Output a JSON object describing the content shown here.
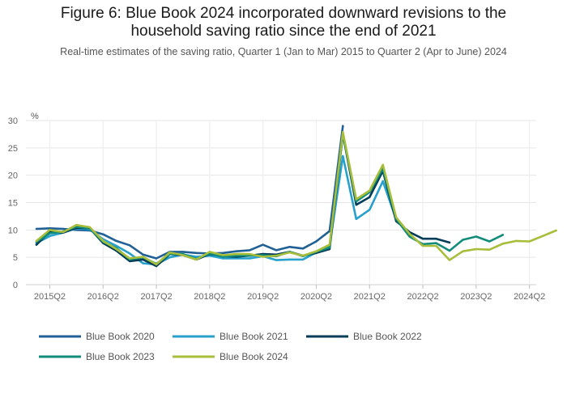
{
  "title_line1": "Figure 6: Blue Book 2024 incorporated downward revisions to the",
  "title_line2": "household saving ratio since the end of 2021",
  "subtitle": "Real-time estimates of the saving ratio, Quarter 1 (Jan to Mar) 2015 to Quarter 2 (Apr to June) 2024",
  "chart_data": {
    "type": "line",
    "title": "Figure 6: Blue Book 2024 incorporated downward revisions to the household saving ratio since the end of 2021",
    "subtitle": "Real-time estimates of the saving ratio, Quarter 1 (Jan to Mar) 2015 to Quarter 2 (Apr to June) 2024",
    "ylabel": "%",
    "xlabel": "",
    "ylim": [
      0,
      30
    ],
    "yticks": [
      "0",
      "5",
      "10",
      "15",
      "20",
      "25",
      "30"
    ],
    "x_tick_labels": [
      "2015Q2",
      "2016Q2",
      "2017Q2",
      "2018Q2",
      "2019Q2",
      "2020Q2",
      "2021Q2",
      "2022Q2",
      "2023Q2",
      "2024Q2"
    ],
    "x_start": "2015Q1",
    "x_tick_first_index": 1,
    "x_tick_step": 4,
    "grid": true,
    "legend_position": "bottom",
    "series": [
      {
        "name": "Blue Book 2020",
        "color": "#206095",
        "values": [
          10.2,
          10.3,
          10.2,
          10.0,
          9.9,
          9.2,
          8.0,
          7.2,
          5.5,
          4.8,
          6.0,
          6.0,
          5.8,
          5.7,
          5.8,
          6.1,
          6.3,
          7.3,
          6.3,
          6.9,
          6.6,
          7.9,
          9.8,
          29.0
        ]
      },
      {
        "name": "Blue Book 2021",
        "color": "#27A0CC",
        "values": [
          7.6,
          8.9,
          9.5,
          10.3,
          10.1,
          8.3,
          7.1,
          5.7,
          3.9,
          3.7,
          5.0,
          5.5,
          5.1,
          5.3,
          4.8,
          4.8,
          4.8,
          5.2,
          4.5,
          4.6,
          4.6,
          5.9,
          7.0,
          23.5,
          12.0,
          13.7,
          18.9,
          11.9,
          9.3
        ]
      },
      {
        "name": "Blue Book 2022",
        "color": "#003C57",
        "values": [
          7.3,
          9.7,
          9.5,
          10.4,
          10.3,
          7.6,
          6.2,
          4.3,
          4.6,
          3.4,
          5.6,
          5.4,
          4.6,
          5.6,
          5.2,
          5.1,
          5.3,
          5.6,
          5.5,
          6.0,
          5.3,
          5.8,
          6.5,
          27.5,
          14.6,
          16.0,
          20.8,
          11.6,
          9.6,
          8.4,
          8.4,
          7.7
        ]
      },
      {
        "name": "Blue Book 2023",
        "color": "#118C7B",
        "values": [
          7.8,
          9.4,
          9.7,
          10.6,
          10.3,
          7.8,
          6.7,
          4.6,
          5.0,
          3.8,
          5.6,
          5.6,
          4.7,
          5.7,
          5.1,
          5.3,
          5.3,
          5.4,
          5.2,
          6.0,
          5.2,
          6.0,
          6.8,
          27.6,
          15.2,
          16.9,
          21.2,
          12.0,
          8.8,
          7.4,
          7.6,
          6.2,
          8.2,
          8.8,
          7.9,
          9.1
        ]
      },
      {
        "name": "Blue Book 2024",
        "color": "#A8BD3A",
        "values": [
          8.0,
          10.0,
          9.6,
          10.9,
          10.5,
          8.0,
          6.5,
          4.8,
          5.1,
          3.7,
          5.9,
          5.4,
          4.6,
          6.0,
          5.4,
          5.6,
          5.6,
          5.1,
          5.3,
          5.9,
          5.3,
          6.1,
          7.3,
          27.9,
          15.6,
          17.2,
          21.9,
          12.3,
          9.3,
          7.1,
          7.1,
          4.5,
          6.1,
          6.5,
          6.4,
          7.5,
          8.0,
          7.9,
          8.9,
          9.9
        ]
      }
    ]
  }
}
